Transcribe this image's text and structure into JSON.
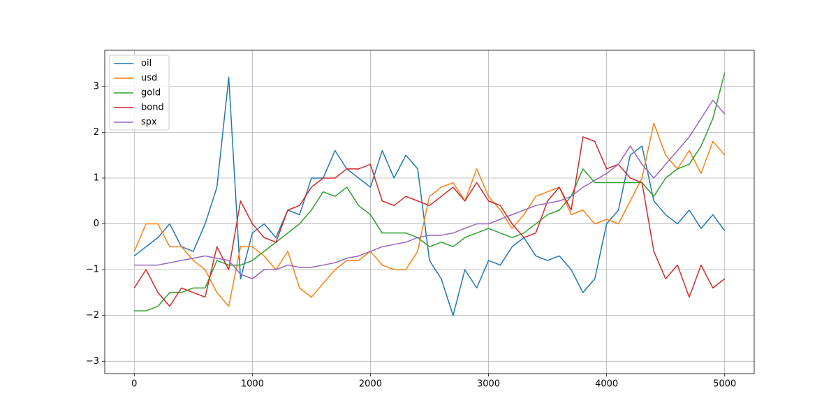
{
  "chart_data": {
    "type": "line",
    "x": [
      0,
      100,
      200,
      300,
      400,
      500,
      600,
      700,
      800,
      900,
      1000,
      1100,
      1200,
      1300,
      1400,
      1500,
      1600,
      1700,
      1800,
      1900,
      2000,
      2100,
      2200,
      2300,
      2400,
      2500,
      2600,
      2700,
      2800,
      2900,
      3000,
      3100,
      3200,
      3300,
      3400,
      3500,
      3600,
      3700,
      3800,
      3900,
      4000,
      4100,
      4200,
      4300,
      4400,
      4500,
      4600,
      4700,
      4800,
      4900,
      5000
    ],
    "series": [
      {
        "name": "oil",
        "color": "#1f77b4",
        "values": [
          -0.7,
          -0.5,
          -0.3,
          0.0,
          -0.5,
          -0.6,
          0.0,
          0.8,
          3.2,
          -1.2,
          -0.2,
          0.0,
          -0.3,
          0.3,
          0.2,
          1.0,
          1.0,
          1.6,
          1.2,
          1.0,
          0.8,
          1.6,
          1.0,
          1.5,
          1.2,
          -0.8,
          -1.2,
          -2.0,
          -1.0,
          -1.4,
          -0.8,
          -0.9,
          -0.5,
          -0.3,
          -0.7,
          -0.8,
          -0.7,
          -1.0,
          -1.5,
          -1.2,
          0.0,
          0.3,
          1.5,
          1.7,
          0.5,
          0.2,
          0.0,
          0.3,
          -0.1,
          0.2,
          -0.15
        ]
      },
      {
        "name": "usd",
        "color": "#ff7f0e",
        "values": [
          -0.6,
          0.0,
          0.0,
          -0.5,
          -0.5,
          -0.8,
          -1.0,
          -1.5,
          -1.8,
          -0.5,
          -0.5,
          -0.7,
          -1.0,
          -0.6,
          -1.4,
          -1.6,
          -1.3,
          -1.0,
          -0.8,
          -0.8,
          -0.6,
          -0.9,
          -1.0,
          -1.0,
          -0.6,
          0.6,
          0.8,
          0.9,
          0.5,
          1.2,
          0.6,
          0.3,
          -0.1,
          0.2,
          0.6,
          0.7,
          0.8,
          0.2,
          0.3,
          0.0,
          0.1,
          0.0,
          0.5,
          1.0,
          2.2,
          1.5,
          1.2,
          1.6,
          1.1,
          1.8,
          1.5
        ]
      },
      {
        "name": "gold",
        "color": "#2ca02c",
        "values": [
          -1.9,
          -1.9,
          -1.8,
          -1.5,
          -1.5,
          -1.4,
          -1.4,
          -0.8,
          -0.9,
          -0.9,
          -0.8,
          -0.6,
          -0.4,
          -0.2,
          0.0,
          0.3,
          0.7,
          0.6,
          0.8,
          0.4,
          0.2,
          -0.2,
          -0.2,
          -0.2,
          -0.3,
          -0.5,
          -0.4,
          -0.5,
          -0.3,
          -0.2,
          -0.1,
          -0.2,
          -0.3,
          -0.2,
          0.0,
          0.2,
          0.3,
          0.6,
          1.2,
          0.9,
          0.9,
          0.9,
          0.9,
          0.9,
          0.6,
          1.0,
          1.2,
          1.3,
          1.7,
          2.3,
          3.3
        ]
      },
      {
        "name": "bond",
        "color": "#d62728",
        "values": [
          -1.4,
          -1.0,
          -1.5,
          -1.8,
          -1.4,
          -1.5,
          -1.6,
          -0.5,
          -1.0,
          0.5,
          0.0,
          -0.3,
          -0.4,
          0.3,
          0.4,
          0.8,
          1.0,
          1.0,
          1.2,
          1.2,
          1.3,
          0.5,
          0.4,
          0.6,
          0.5,
          0.4,
          0.6,
          0.8,
          0.5,
          0.9,
          0.5,
          0.4,
          0.0,
          -0.3,
          -0.2,
          0.5,
          0.8,
          0.3,
          1.9,
          1.8,
          1.2,
          1.3,
          1.0,
          0.9,
          -0.6,
          -1.2,
          -0.9,
          -1.6,
          -0.9,
          -1.4,
          -1.2
        ]
      },
      {
        "name": "spx",
        "color": "#9467bd",
        "values": [
          -0.9,
          -0.9,
          -0.9,
          -0.85,
          -0.8,
          -0.75,
          -0.7,
          -0.75,
          -0.8,
          -1.1,
          -1.2,
          -1.0,
          -1.0,
          -0.9,
          -0.95,
          -0.95,
          -0.9,
          -0.85,
          -0.75,
          -0.7,
          -0.6,
          -0.5,
          -0.45,
          -0.4,
          -0.3,
          -0.25,
          -0.25,
          -0.2,
          -0.1,
          0.0,
          0.0,
          0.1,
          0.2,
          0.3,
          0.4,
          0.45,
          0.5,
          0.6,
          0.8,
          0.95,
          1.1,
          1.3,
          1.7,
          1.3,
          1.0,
          1.3,
          1.6,
          1.9,
          2.3,
          2.7,
          2.4
        ]
      }
    ],
    "xlim": [
      -250,
      5250
    ],
    "ylim": [
      -3.27,
      3.79
    ],
    "xticks": [
      0,
      1000,
      2000,
      3000,
      4000,
      5000
    ],
    "yticks": [
      {
        "value": -3,
        "label": "−3"
      },
      {
        "value": -2,
        "label": "−2"
      },
      {
        "value": -1,
        "label": "−1"
      },
      0,
      1,
      2,
      3
    ],
    "grid": true,
    "legend": "upper left"
  }
}
